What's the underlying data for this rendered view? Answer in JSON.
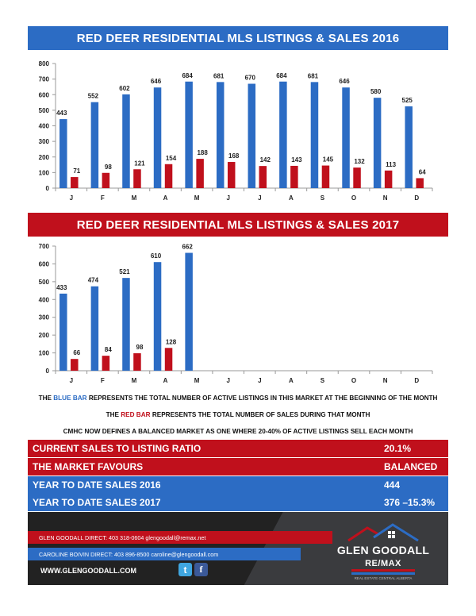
{
  "colors": {
    "blue": "#2c6cc4",
    "red": "#c0101c"
  },
  "chart_data": [
    {
      "type": "bar",
      "title": "RED DEER RESIDENTIAL MLS LISTINGS & SALES 2016",
      "categories": [
        "J",
        "F",
        "M",
        "A",
        "M",
        "J",
        "J",
        "A",
        "S",
        "O",
        "N",
        "D"
      ],
      "series": [
        {
          "values": [
            443,
            552,
            602,
            646,
            684,
            681,
            670,
            684,
            681,
            646,
            580,
            525
          ]
        },
        {
          "values": [
            71,
            98,
            121,
            154,
            188,
            168,
            142,
            143,
            145,
            132,
            113,
            64
          ]
        }
      ],
      "ylim": [
        0,
        800
      ],
      "yticks": [
        0,
        100,
        200,
        300,
        400,
        500,
        600,
        700,
        800
      ],
      "grid": false
    },
    {
      "type": "bar",
      "title": "RED DEER RESIDENTIAL MLS LISTINGS & SALES 2017",
      "categories": [
        "J",
        "F",
        "M",
        "A",
        "M",
        "J",
        "J",
        "A",
        "S",
        "O",
        "N",
        "D"
      ],
      "series": [
        {
          "values": [
            433,
            474,
            521,
            610,
            662,
            null,
            null,
            null,
            null,
            null,
            null,
            null
          ]
        },
        {
          "values": [
            66,
            84,
            98,
            128,
            null,
            null,
            null,
            null,
            null,
            null,
            null,
            null
          ]
        }
      ],
      "ylim": [
        0,
        700
      ],
      "yticks": [
        0,
        100,
        200,
        300,
        400,
        500,
        600,
        700
      ],
      "grid": false
    }
  ],
  "legend": {
    "line1_prefix": "THE",
    "line1_blue": "BLUE BAR",
    "line1_rest": "REPRESENTS THE TOTAL NUMBER OF ACTIVE LISTINGS IN THIS MARKET AT THE BEGINNING OF THE MONTH",
    "line2_prefix": "THE",
    "line2_red": "RED BAR",
    "line2_rest": "REPRESENTS THE TOTAL NUMBER OF SALES DURING THAT MONTH",
    "line3": "CMHC NOW DEFINES A BALANCED MARKET AS ONE WHERE 20-40% OF ACTIVE LISTINGS SELL EACH MONTH"
  },
  "stats": {
    "ratio_label": "CURRENT SALES TO LISTING RATIO",
    "ratio_value": "20.1%",
    "favours_label": "THE MARKET FAVOURS",
    "favours_value": "BALANCED",
    "ytd2016_label": "YEAR TO DATE SALES 2016",
    "ytd2016_value": "444",
    "ytd2017_label": "YEAR TO DATE SALES 2017",
    "ytd2017_value": "376 –15.3%"
  },
  "footer": {
    "contact1": "GLEN GOODALL DIRECT: 403 318-0604  glengoodall@remax.net",
    "contact2": "CAROLINE BOIVIN DIRECT: 403 896-8500 caroline@glengoodall.com",
    "website": "WWW.GLENGOODALL.COM",
    "logo_name": "GLEN GOODALL",
    "logo_brand": "RE/MAX",
    "logo_tag": "REAL ESTATE CENTRAL ALBERTA",
    "icons": [
      "twitter-icon",
      "facebook-icon"
    ]
  }
}
